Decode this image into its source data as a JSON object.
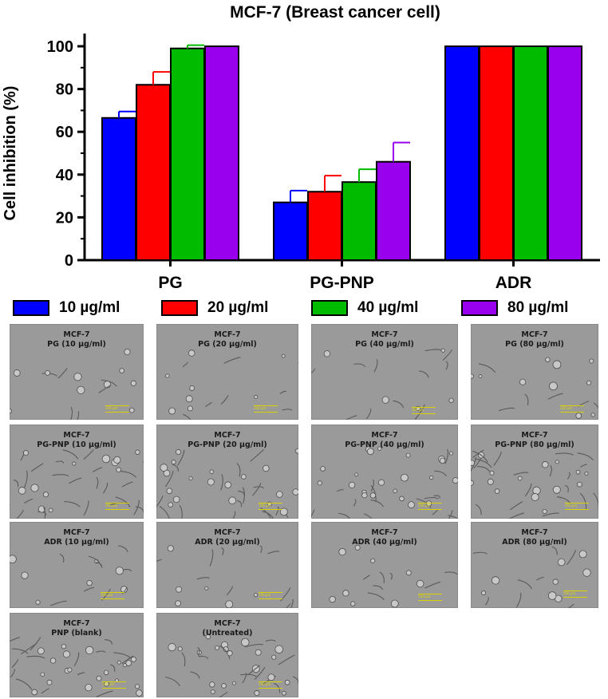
{
  "chart_data": {
    "type": "bar",
    "title": "MCF-7 (Breast cancer cell)",
    "xlabel": "",
    "ylabel": "Cell inhibition (%)",
    "ylim": [
      0,
      105
    ],
    "yticks": [
      0,
      20,
      40,
      60,
      80,
      100
    ],
    "categories": [
      "PG",
      "PG-PNP",
      "ADR"
    ],
    "series": [
      {
        "name": "10 µg/ml",
        "color": "#0000ff",
        "values": [
          66.5,
          27,
          100
        ],
        "errors": [
          3,
          5.5,
          0
        ]
      },
      {
        "name": "20 µg/ml",
        "color": "#ff0000",
        "values": [
          82,
          32,
          100
        ],
        "errors": [
          6,
          7.5,
          0
        ]
      },
      {
        "name": "40 µg/ml",
        "color": "#00bb00",
        "values": [
          99,
          36.5,
          100
        ],
        "errors": [
          1.5,
          6,
          0
        ]
      },
      {
        "name": "80 µg/ml",
        "color": "#9900ee",
        "values": [
          100,
          46,
          100
        ],
        "errors": [
          0,
          9,
          0
        ]
      }
    ],
    "grid": false,
    "legend_position": "bottom"
  },
  "micrographs": [
    {
      "line1": "MCF-7",
      "line2": "PG (10 µg/ml)",
      "scale": "100 µm"
    },
    {
      "line1": "MCF-7",
      "line2": "PG (20 µg/ml)",
      "scale": "100 µm"
    },
    {
      "line1": "MCF-7",
      "line2": "PG (40 µg/ml)",
      "scale": "100 µm"
    },
    {
      "line1": "MCF-7",
      "line2": "PG (80 µg/ml)",
      "scale": "100 µm"
    },
    {
      "line1": "MCF-7",
      "line2": "PG-PNP (10 µg/ml)",
      "scale": "100 µm"
    },
    {
      "line1": "MCF-7",
      "line2": "PG-PNP (20 µg/ml)",
      "scale": "100 µm"
    },
    {
      "line1": "MCF-7",
      "line2": "PG-PNP (40 µg/ml)",
      "scale": "100 µm"
    },
    {
      "line1": "MCF-7",
      "line2": "PG-PNP (80 µg/ml)",
      "scale": "100 µm"
    },
    {
      "line1": "MCF-7",
      "line2": "ADR (10 µg/ml)",
      "scale": "100 µm"
    },
    {
      "line1": "MCF-7",
      "line2": "ADR (20 µg/ml)",
      "scale": "100 µm"
    },
    {
      "line1": "MCF-7",
      "line2": "ADR (40 µg/ml)",
      "scale": "100 µm"
    },
    {
      "line1": "MCF-7",
      "line2": "ADR (80 µg/ml)",
      "scale": "100 µm"
    },
    {
      "line1": "MCF-7",
      "line2": "PNP (blank)",
      "scale": "100 µm"
    },
    {
      "line1": "MCF-7",
      "line2": "(Untreated)",
      "scale": "100 µm"
    }
  ]
}
